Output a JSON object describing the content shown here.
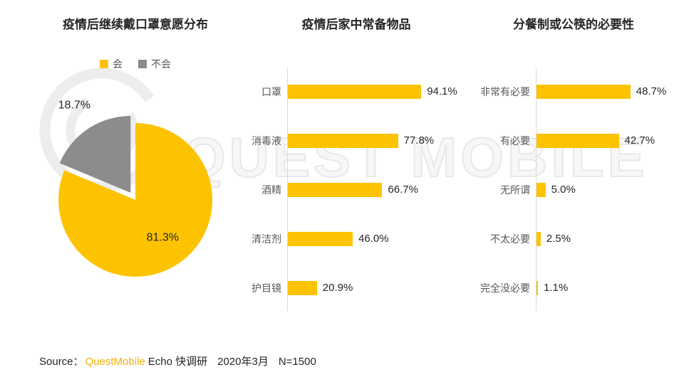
{
  "watermark": {
    "text": "QUEST MOBILE"
  },
  "colors": {
    "accent_yellow": "#FDC300",
    "slice_gray": "#8C8C8C",
    "text_dark": "#262626",
    "text_gray": "#595959",
    "source_brand": "#F9B200"
  },
  "source": {
    "label": "Source：",
    "brand": "QuestMobile",
    "method": "Echo 快调研",
    "date": "2020年3月",
    "sample": "N=1500"
  },
  "chart_data": [
    {
      "type": "pie",
      "title": "疫情后继续戴口罩意愿分布",
      "legend": [
        "会",
        "不会"
      ],
      "labels": [
        "会",
        "不会"
      ],
      "values": [
        81.3,
        18.7
      ],
      "value_labels": [
        "81.3%",
        "18.7%"
      ],
      "colors": [
        "#FDC300",
        "#8C8C8C"
      ],
      "explode": [
        0,
        12
      ],
      "label_placement": [
        "inside",
        "outside"
      ],
      "start_angle": 0,
      "legend_position": "top"
    },
    {
      "type": "bar",
      "orientation": "horizontal",
      "title": "疫情后家中常备物品",
      "categories": [
        "口罩",
        "消毒液",
        "酒精",
        "清洁剂",
        "护目镜"
      ],
      "values": [
        94.1,
        77.8,
        66.7,
        46.0,
        20.9
      ],
      "value_labels": [
        "94.1%",
        "77.8%",
        "66.7%",
        "46.0%",
        "20.9%"
      ],
      "xlim": [
        0,
        100
      ],
      "grid": false
    },
    {
      "type": "bar",
      "orientation": "horizontal",
      "title": "分餐制或公筷的必要性",
      "categories": [
        "非常有必要",
        "有必要",
        "无所谓",
        "不太必要",
        "完全没必要"
      ],
      "values": [
        48.7,
        42.7,
        5.0,
        2.5,
        1.1
      ],
      "value_labels": [
        "48.7%",
        "42.7%",
        "5.0%",
        "2.5%",
        "1.1%"
      ],
      "xlim": [
        0,
        55
      ],
      "grid": false
    }
  ]
}
